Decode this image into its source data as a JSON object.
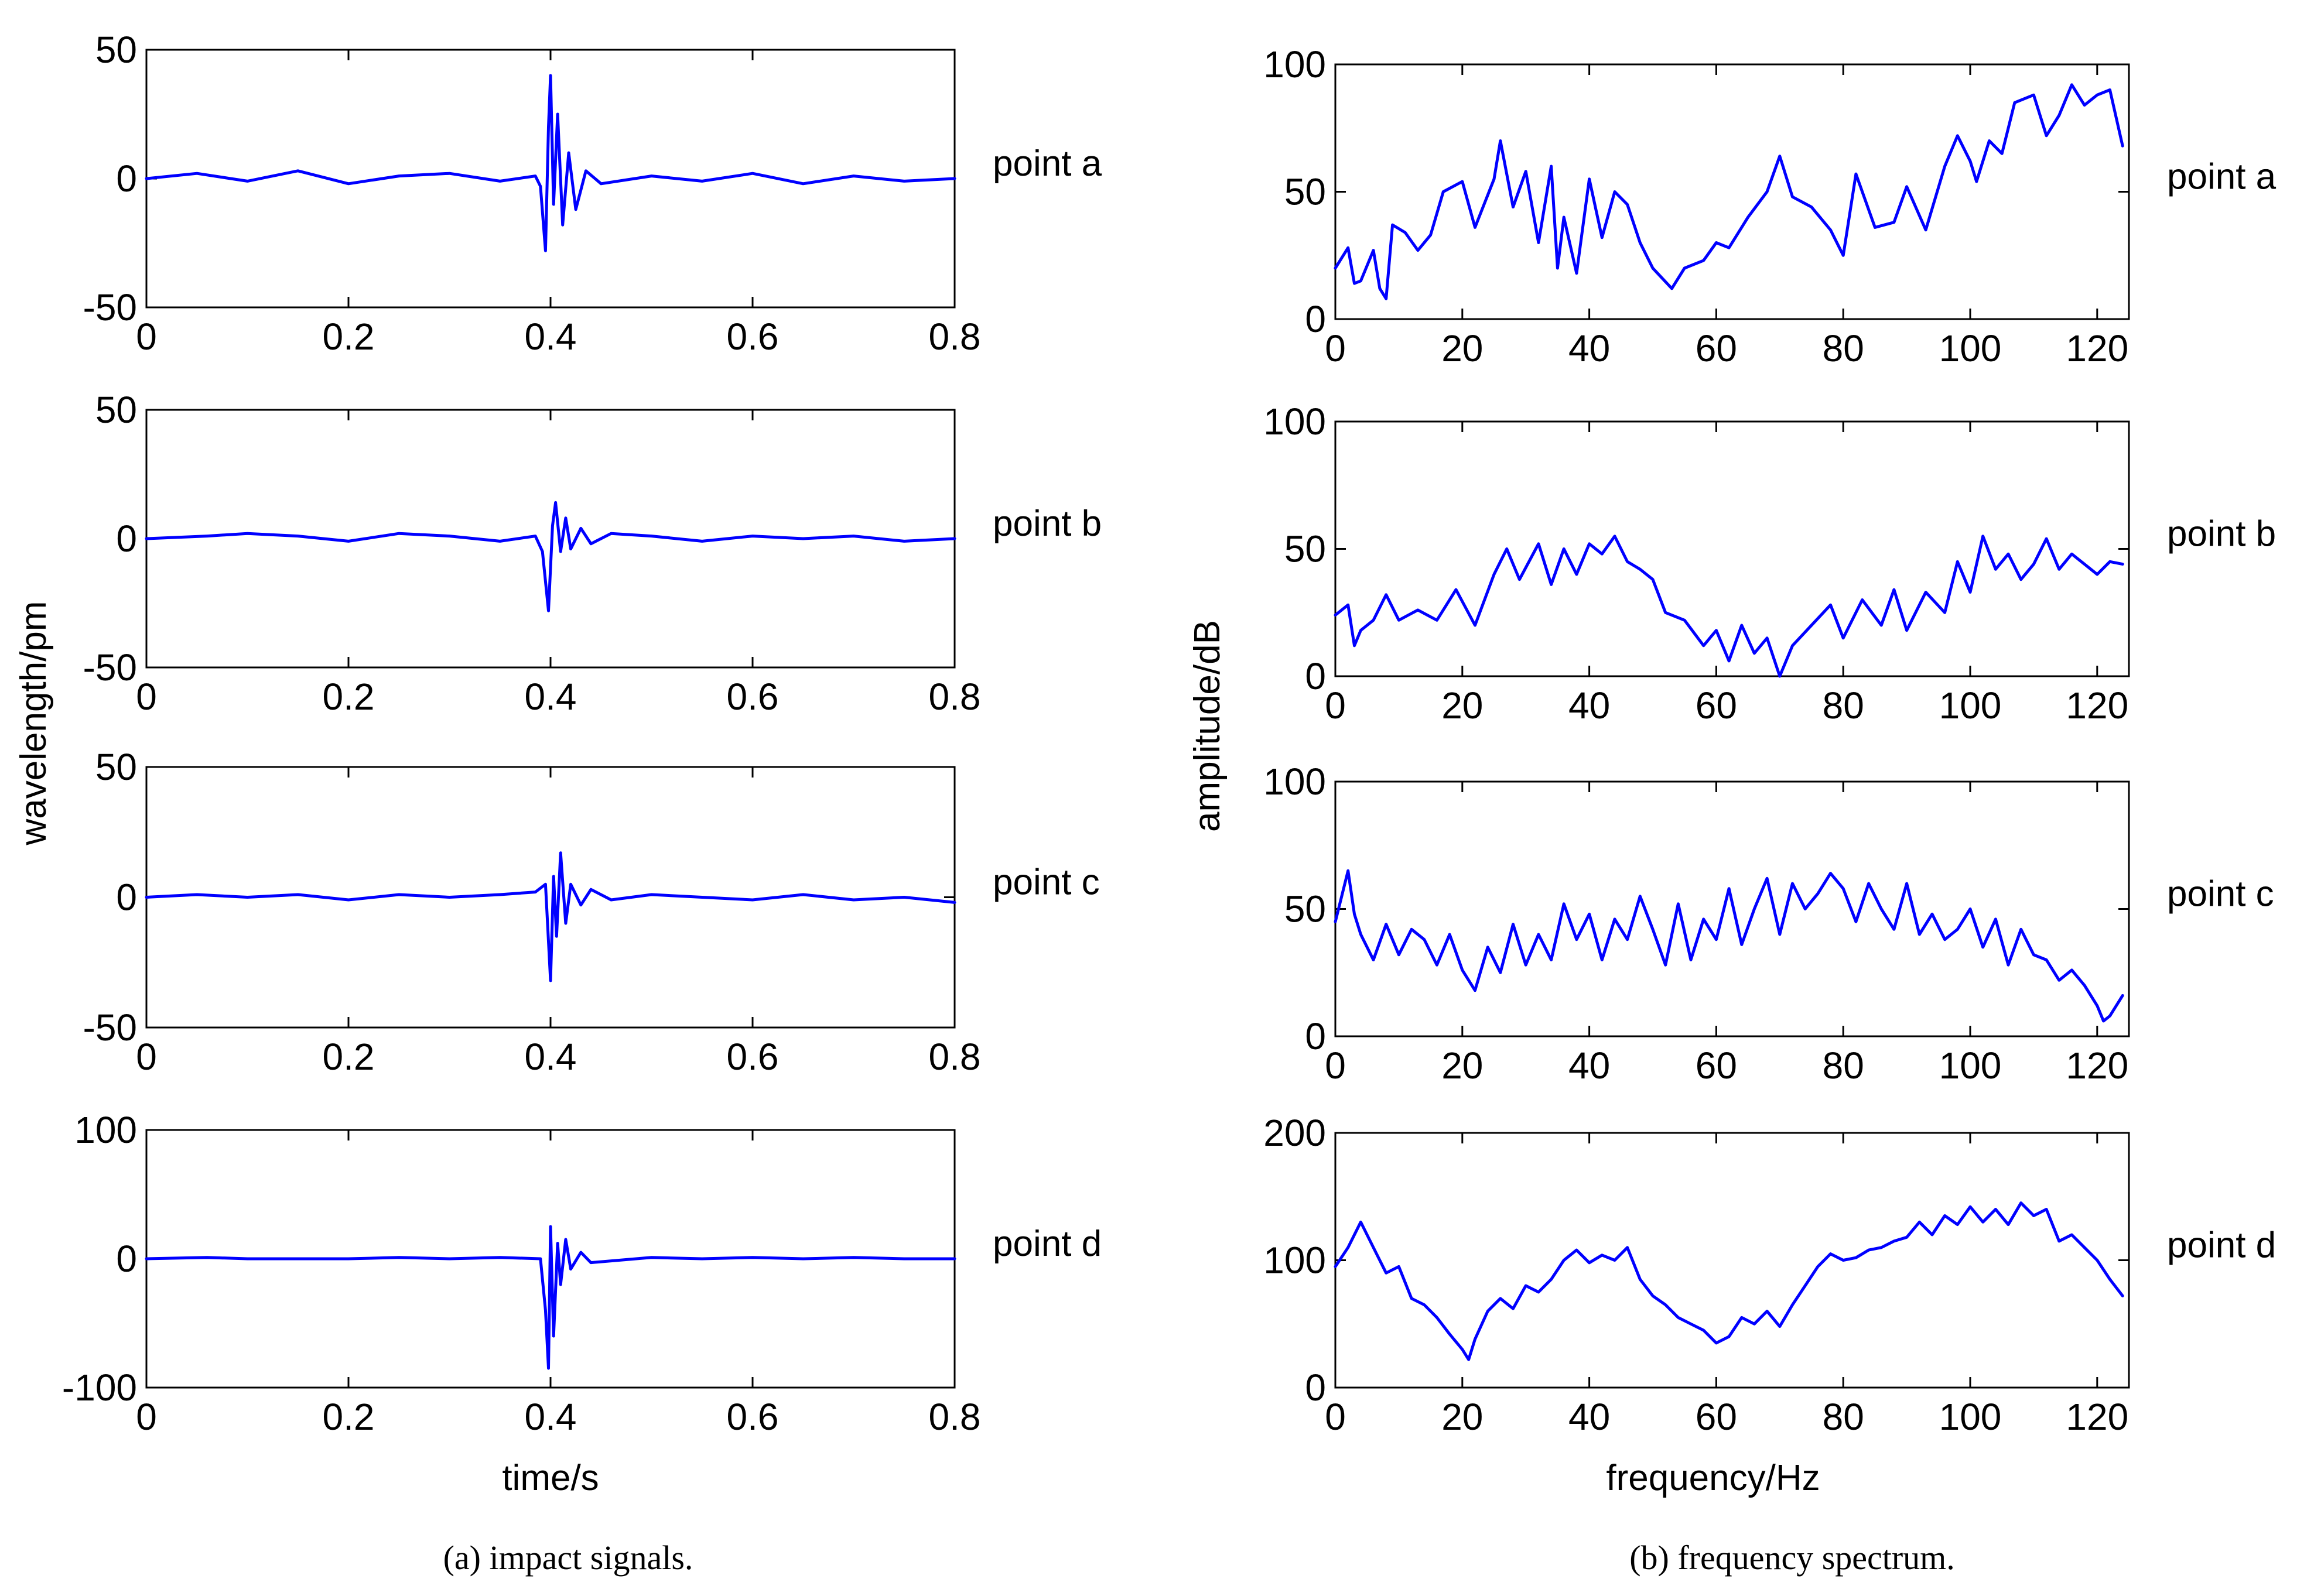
{
  "figure": {
    "caption_a": "(a)  impact signals.",
    "caption_b": "(b)  frequency spectrum.",
    "ylabel_a": "wavelength/pm",
    "xlabel_a": "time/s",
    "ylabel_b": "amplitude/dB",
    "xlabel_b": "frequency/Hz",
    "series_color": "#0000ff"
  },
  "chart_data": [
    {
      "type": "line",
      "panel": "impact signals",
      "point": "point a",
      "xlim": [
        0,
        0.8
      ],
      "ylim": [
        -50,
        50
      ],
      "xticks": [
        "0",
        "0.2",
        "0.4",
        "0.6",
        "0.8"
      ],
      "yticks": [
        "-50",
        "0",
        "50"
      ],
      "x": [
        0,
        0.05,
        0.1,
        0.15,
        0.2,
        0.25,
        0.3,
        0.35,
        0.385,
        0.39,
        0.395,
        0.398,
        0.4,
        0.403,
        0.407,
        0.412,
        0.418,
        0.425,
        0.435,
        0.45,
        0.5,
        0.55,
        0.6,
        0.65,
        0.7,
        0.75,
        0.8
      ],
      "y": [
        0,
        2,
        -1,
        3,
        -2,
        1,
        2,
        -1,
        1,
        -3,
        -28,
        20,
        40,
        -10,
        25,
        -18,
        10,
        -12,
        3,
        -2,
        1,
        -1,
        2,
        -2,
        1,
        -1,
        0
      ]
    },
    {
      "type": "line",
      "panel": "impact signals",
      "point": "point b",
      "xlim": [
        0,
        0.8
      ],
      "ylim": [
        -50,
        50
      ],
      "xticks": [
        "0",
        "0.2",
        "0.4",
        "0.6",
        "0.8"
      ],
      "yticks": [
        "-50",
        "0",
        "50"
      ],
      "x": [
        0,
        0.06,
        0.1,
        0.15,
        0.2,
        0.25,
        0.3,
        0.35,
        0.385,
        0.392,
        0.398,
        0.402,
        0.405,
        0.41,
        0.415,
        0.42,
        0.43,
        0.44,
        0.46,
        0.5,
        0.55,
        0.6,
        0.65,
        0.7,
        0.75,
        0.8
      ],
      "y": [
        0,
        1,
        2,
        1,
        -1,
        2,
        1,
        -1,
        1,
        -5,
        -28,
        5,
        14,
        -5,
        8,
        -4,
        4,
        -2,
        2,
        1,
        -1,
        1,
        0,
        1,
        -1,
        0
      ]
    },
    {
      "type": "line",
      "panel": "impact signals",
      "point": "point c",
      "xlim": [
        0,
        0.8
      ],
      "ylim": [
        -50,
        50
      ],
      "xticks": [
        "0",
        "0.2",
        "0.4",
        "0.6",
        "0.8"
      ],
      "yticks": [
        "-50",
        "0",
        "50"
      ],
      "x": [
        0,
        0.05,
        0.1,
        0.15,
        0.2,
        0.25,
        0.3,
        0.35,
        0.385,
        0.395,
        0.4,
        0.403,
        0.406,
        0.41,
        0.415,
        0.42,
        0.43,
        0.44,
        0.46,
        0.5,
        0.55,
        0.6,
        0.65,
        0.7,
        0.75,
        0.8
      ],
      "y": [
        0,
        1,
        0,
        1,
        -1,
        1,
        0,
        1,
        2,
        5,
        -32,
        8,
        -15,
        17,
        -10,
        5,
        -3,
        3,
        -1,
        1,
        0,
        -1,
        1,
        -1,
        0,
        -2
      ]
    },
    {
      "type": "line",
      "panel": "impact signals",
      "point": "point d",
      "xlim": [
        0,
        0.8
      ],
      "ylim": [
        -100,
        100
      ],
      "xticks": [
        "0",
        "0.2",
        "0.4",
        "0.6",
        "0.8"
      ],
      "yticks": [
        "-100",
        "0",
        "100"
      ],
      "x": [
        0,
        0.06,
        0.1,
        0.2,
        0.25,
        0.3,
        0.35,
        0.39,
        0.395,
        0.398,
        0.4,
        0.403,
        0.407,
        0.41,
        0.415,
        0.42,
        0.43,
        0.44,
        0.5,
        0.55,
        0.6,
        0.65,
        0.7,
        0.75,
        0.8
      ],
      "y": [
        0,
        1,
        0,
        0,
        1,
        0,
        1,
        0,
        -40,
        -85,
        25,
        -60,
        12,
        -20,
        15,
        -8,
        5,
        -3,
        1,
        0,
        1,
        0,
        1,
        0,
        0
      ]
    },
    {
      "type": "line",
      "panel": "frequency spectrum",
      "point": "point a",
      "xlim": [
        0,
        125
      ],
      "ylim": [
        0,
        100
      ],
      "xticks": [
        "0",
        "20",
        "40",
        "60",
        "80",
        "100",
        "120"
      ],
      "yticks": [
        "0",
        "50",
        "100"
      ],
      "x": [
        0,
        2,
        3,
        4,
        6,
        7,
        8,
        9,
        11,
        13,
        15,
        17,
        20,
        22,
        25,
        26,
        28,
        30,
        32,
        34,
        35,
        36,
        38,
        40,
        42,
        44,
        46,
        48,
        50,
        53,
        55,
        58,
        60,
        62,
        65,
        68,
        70,
        72,
        75,
        78,
        80,
        82,
        85,
        88,
        90,
        93,
        96,
        98,
        100,
        101,
        103,
        105,
        107,
        110,
        112,
        114,
        116,
        118,
        120,
        122,
        124
      ],
      "y": [
        20,
        28,
        14,
        15,
        27,
        12,
        8,
        37,
        34,
        27,
        33,
        50,
        54,
        36,
        55,
        70,
        44,
        58,
        30,
        60,
        20,
        40,
        18,
        55,
        32,
        50,
        45,
        30,
        20,
        12,
        20,
        23,
        30,
        28,
        40,
        50,
        64,
        48,
        44,
        35,
        25,
        57,
        36,
        38,
        52,
        35,
        60,
        72,
        62,
        54,
        70,
        65,
        85,
        88,
        72,
        80,
        92,
        84,
        88,
        90,
        68
      ]
    },
    {
      "type": "line",
      "panel": "frequency spectrum",
      "point": "point b",
      "xlim": [
        0,
        125
      ],
      "ylim": [
        0,
        100
      ],
      "xticks": [
        "0",
        "20",
        "40",
        "60",
        "80",
        "100",
        "120"
      ],
      "yticks": [
        "0",
        "50",
        "100"
      ],
      "x": [
        0,
        2,
        3,
        4,
        6,
        8,
        10,
        13,
        16,
        19,
        22,
        25,
        27,
        29,
        32,
        34,
        36,
        38,
        40,
        42,
        44,
        46,
        48,
        50,
        52,
        55,
        58,
        60,
        62,
        64,
        66,
        68,
        70,
        72,
        75,
        78,
        80,
        83,
        86,
        88,
        90,
        93,
        96,
        98,
        100,
        102,
        104,
        106,
        108,
        110,
        112,
        114,
        116,
        118,
        120,
        122,
        124
      ],
      "y": [
        24,
        28,
        12,
        18,
        22,
        32,
        22,
        26,
        22,
        34,
        20,
        40,
        50,
        38,
        52,
        36,
        50,
        40,
        52,
        48,
        55,
        45,
        42,
        38,
        25,
        22,
        12,
        18,
        6,
        20,
        9,
        15,
        0,
        12,
        20,
        28,
        15,
        30,
        20,
        34,
        18,
        33,
        25,
        45,
        33,
        55,
        42,
        48,
        38,
        44,
        54,
        42,
        48,
        44,
        40,
        45,
        44
      ]
    },
    {
      "type": "line",
      "panel": "frequency spectrum",
      "point": "point c",
      "xlim": [
        0,
        125
      ],
      "ylim": [
        0,
        100
      ],
      "xticks": [
        "0",
        "20",
        "40",
        "60",
        "80",
        "100",
        "120"
      ],
      "yticks": [
        "0",
        "50",
        "100"
      ],
      "x": [
        0,
        2,
        3,
        4,
        6,
        8,
        10,
        12,
        14,
        16,
        18,
        20,
        22,
        24,
        26,
        28,
        30,
        32,
        34,
        36,
        38,
        40,
        42,
        44,
        46,
        48,
        50,
        52,
        54,
        56,
        58,
        60,
        62,
        64,
        66,
        68,
        70,
        72,
        74,
        76,
        78,
        80,
        82,
        84,
        86,
        88,
        90,
        92,
        94,
        96,
        98,
        100,
        102,
        104,
        106,
        108,
        110,
        112,
        114,
        116,
        118,
        120,
        121,
        122,
        124
      ],
      "y": [
        45,
        65,
        48,
        40,
        30,
        44,
        32,
        42,
        38,
        28,
        40,
        26,
        18,
        35,
        25,
        44,
        28,
        40,
        30,
        52,
        38,
        48,
        30,
        46,
        38,
        55,
        42,
        28,
        52,
        30,
        46,
        38,
        58,
        36,
        50,
        62,
        40,
        60,
        50,
        56,
        64,
        58,
        45,
        60,
        50,
        42,
        60,
        40,
        48,
        38,
        42,
        50,
        35,
        46,
        28,
        42,
        32,
        30,
        22,
        26,
        20,
        12,
        6,
        8,
        16
      ]
    },
    {
      "type": "line",
      "panel": "frequency spectrum",
      "point": "point d",
      "xlim": [
        0,
        125
      ],
      "ylim": [
        0,
        200
      ],
      "xticks": [
        "0",
        "20",
        "40",
        "60",
        "80",
        "100",
        "120"
      ],
      "yticks": [
        "0",
        "100",
        "200"
      ],
      "x": [
        0,
        2,
        4,
        6,
        8,
        10,
        12,
        14,
        16,
        18,
        20,
        21,
        22,
        24,
        26,
        28,
        30,
        32,
        34,
        36,
        38,
        40,
        42,
        44,
        46,
        48,
        50,
        52,
        54,
        56,
        58,
        60,
        62,
        64,
        66,
        68,
        70,
        72,
        74,
        76,
        78,
        80,
        82,
        84,
        86,
        88,
        90,
        92,
        94,
        96,
        98,
        100,
        102,
        104,
        106,
        108,
        110,
        112,
        114,
        116,
        118,
        120,
        122,
        124
      ],
      "y": [
        95,
        110,
        130,
        110,
        90,
        95,
        70,
        65,
        55,
        42,
        30,
        22,
        38,
        60,
        70,
        62,
        80,
        75,
        85,
        100,
        108,
        98,
        104,
        100,
        110,
        85,
        72,
        65,
        55,
        50,
        45,
        35,
        40,
        55,
        50,
        60,
        48,
        65,
        80,
        95,
        105,
        100,
        102,
        108,
        110,
        115,
        118,
        130,
        120,
        135,
        128,
        142,
        130,
        140,
        128,
        145,
        135,
        140,
        115,
        120,
        110,
        100,
        85,
        72
      ]
    }
  ]
}
